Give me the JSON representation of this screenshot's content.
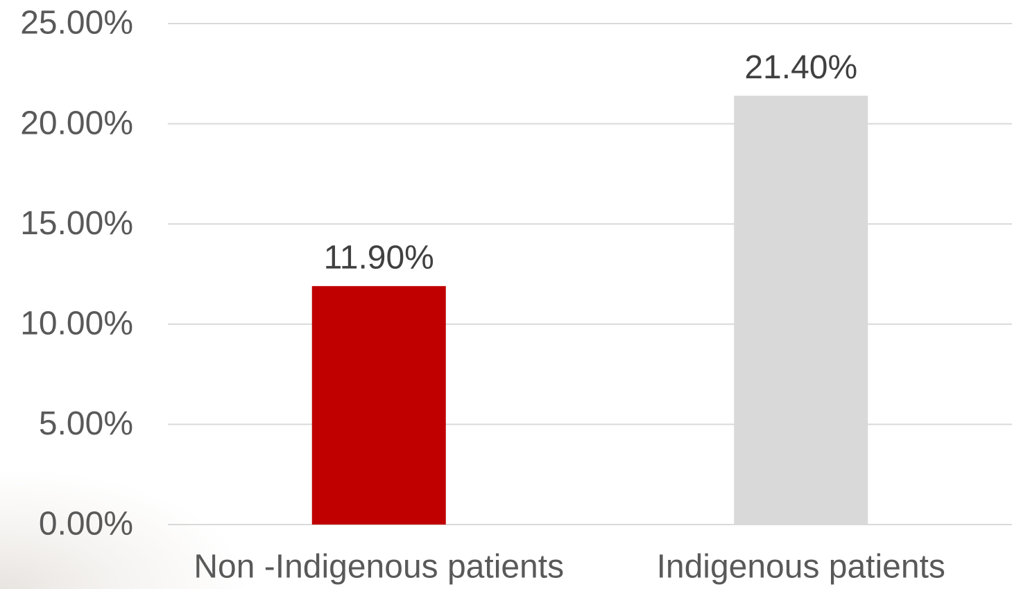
{
  "chart_data": {
    "type": "bar",
    "categories": [
      "Non -Indigenous patients",
      "Indigenous patients"
    ],
    "values": [
      11.9,
      21.4
    ],
    "value_labels": [
      "11.90%",
      "21.40%"
    ],
    "colors": [
      "#c00000",
      "#d9d9d9"
    ],
    "ylim": [
      0,
      25
    ],
    "yticks": [
      {
        "value": 0,
        "label": "0.00%"
      },
      {
        "value": 5,
        "label": "5.00%"
      },
      {
        "value": 10,
        "label": "10.00%"
      },
      {
        "value": 15,
        "label": "15.00%"
      },
      {
        "value": 20,
        "label": "20.00%"
      },
      {
        "value": 25,
        "label": "25.00%"
      }
    ],
    "grid": true
  }
}
